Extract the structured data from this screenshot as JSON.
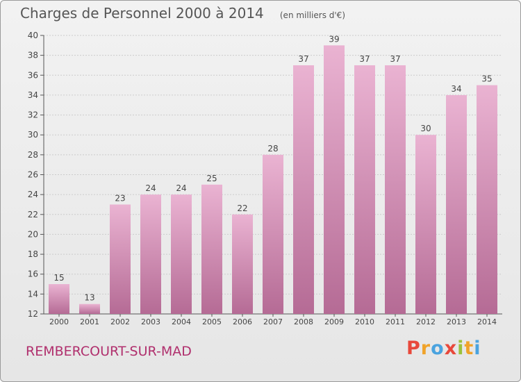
{
  "header": {
    "title": "Charges de Personnel 2000 à 2014",
    "subtitle": "(en milliers d'€)"
  },
  "footer": {
    "commune": "REMBERCOURT-SUR-MAD",
    "brand_letters": [
      "P",
      "r",
      "o",
      "x",
      "i",
      "t",
      "i"
    ],
    "brand_colors": [
      "#e8483b",
      "#f0a32a",
      "#4aa3df",
      "#e8483b",
      "#9ac23c",
      "#f0a32a",
      "#4aa3df"
    ]
  },
  "colors": {
    "bar_top": "#eab3d2",
    "bar_bottom": "#b56b95",
    "axis": "#555555",
    "grid": "#cccccc",
    "text": "#444444"
  },
  "chart_data": {
    "type": "bar",
    "categories": [
      "2000",
      "2001",
      "2002",
      "2003",
      "2004",
      "2005",
      "2006",
      "2007",
      "2008",
      "2009",
      "2010",
      "2011",
      "2012",
      "2013",
      "2014"
    ],
    "values": [
      15,
      13,
      23,
      24,
      24,
      25,
      22,
      28,
      37,
      39,
      37,
      37,
      30,
      34,
      35
    ],
    "title": "Charges de Personnel 2000 à 2014",
    "xlabel": "",
    "ylabel": "",
    "ylim": [
      12,
      40
    ],
    "yticks": [
      12,
      14,
      16,
      18,
      20,
      22,
      24,
      26,
      28,
      30,
      32,
      34,
      36,
      38,
      40
    ],
    "grid": true
  }
}
